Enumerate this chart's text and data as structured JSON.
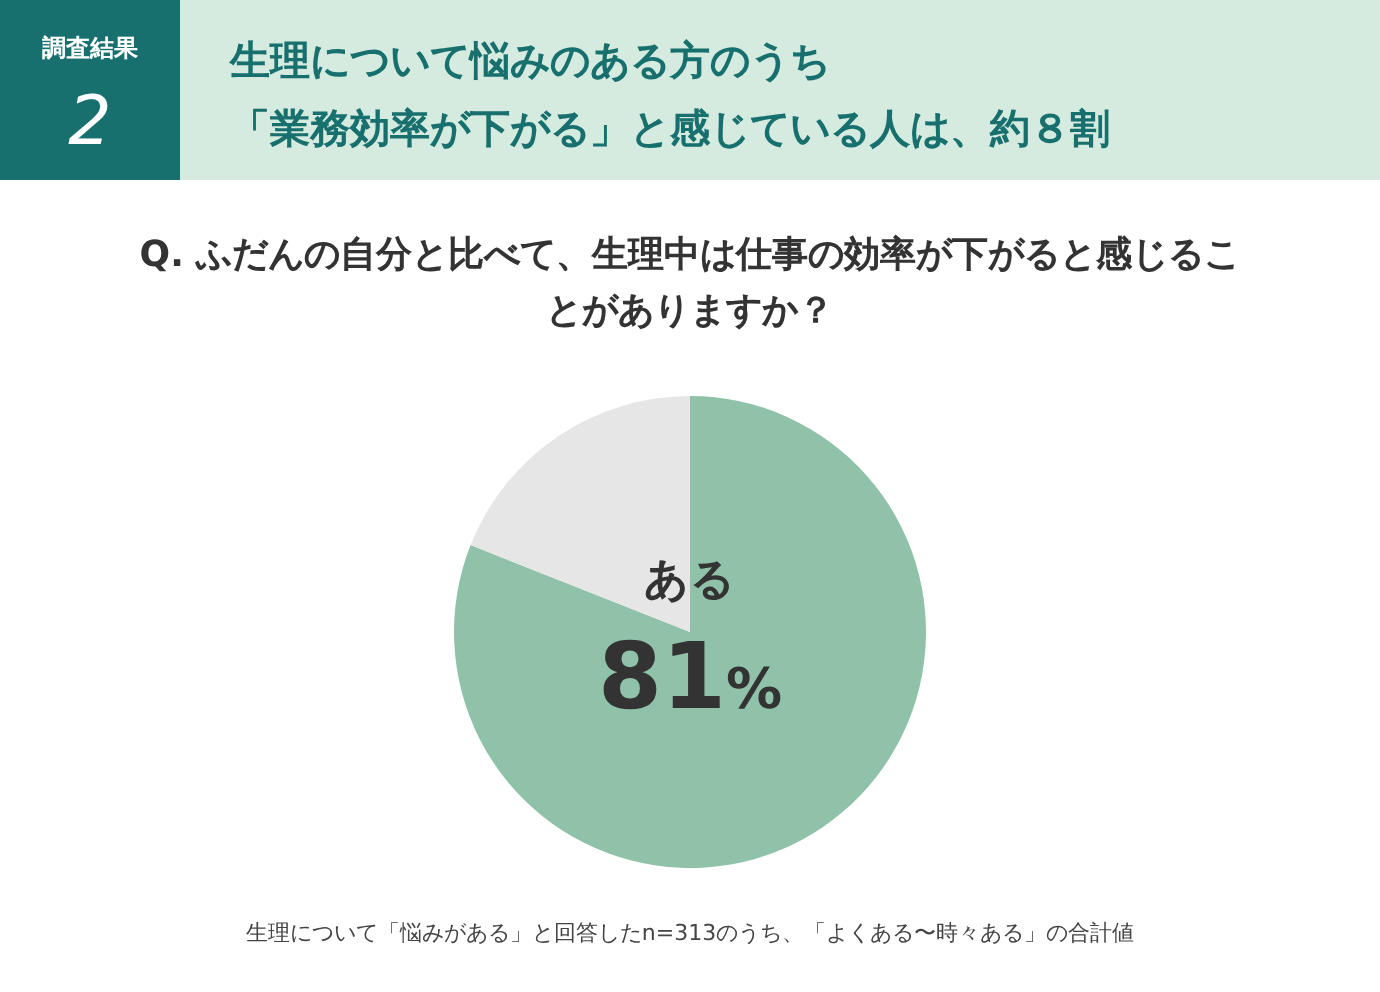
{
  "chart_data": {
    "type": "pie",
    "title": "生理について悩みのある方のうち「業務効率が下がる」と感じている人は、約８割",
    "subtitle": "Q. ふだんの自分と比べて、生理中は仕事の効率が下がると感じることがありますか？",
    "categories": [
      "ある",
      null
    ],
    "values": [
      81,
      19
    ],
    "colors": [
      "#8fc2a9",
      "#e6e6e6"
    ],
    "value_labels": [
      "81%",
      null
    ],
    "annotations": [
      "調査結果",
      "2",
      "生理について「悩みがある」と回答したn=313のうち、「よくある〜時々ある」の合計値"
    ]
  }
}
